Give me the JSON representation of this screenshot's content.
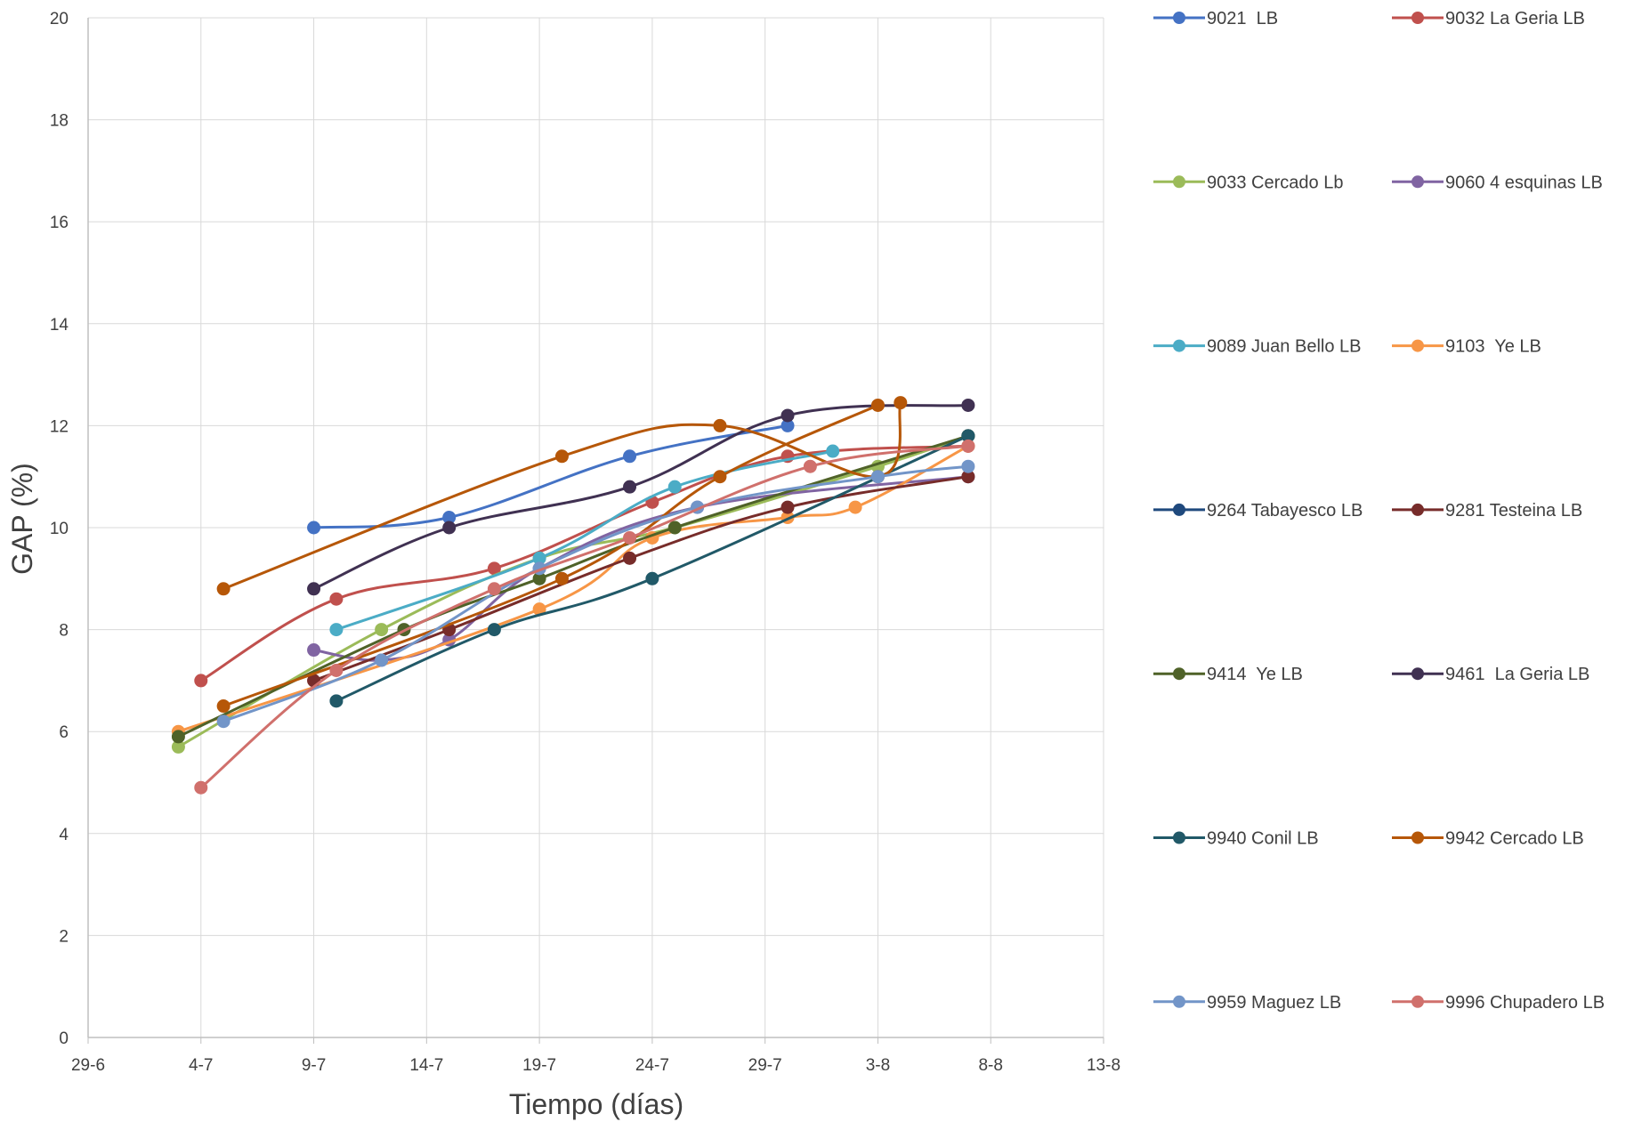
{
  "chart_data": {
    "type": "line",
    "xlabel": "Tiempo (días)",
    "ylabel": "GAP (%)",
    "x_type": "date",
    "x_ticks": [
      "29-6",
      "4-7",
      "9-7",
      "14-7",
      "19-7",
      "24-7",
      "29-7",
      "3-8",
      "8-8",
      "13-8"
    ],
    "x_tick_dates": [
      "2020-06-29",
      "2020-07-04",
      "2020-07-09",
      "2020-07-14",
      "2020-07-19",
      "2020-07-24",
      "2020-07-29",
      "2020-08-03",
      "2020-08-08",
      "2020-08-13"
    ],
    "xlim": [
      "2020-06-29",
      "2020-08-13"
    ],
    "ylim": [
      0,
      20
    ],
    "y_ticks": [
      0,
      2,
      4,
      6,
      8,
      10,
      12,
      14,
      16,
      18,
      20
    ],
    "grid": true,
    "legend_position": "right",
    "series": [
      {
        "name": "9021  LB",
        "color": "#4472C4",
        "points": [
          [
            "2020-07-09",
            10.0
          ],
          [
            "2020-07-15",
            10.2
          ],
          [
            "2020-07-23",
            11.4
          ],
          [
            "2020-07-30",
            12.0
          ]
        ]
      },
      {
        "name": "9032 La Geria LB",
        "color": "#C0504D",
        "points": [
          [
            "2020-07-04",
            7.0
          ],
          [
            "2020-07-10",
            8.6
          ],
          [
            "2020-07-17",
            9.2
          ],
          [
            "2020-07-24",
            10.5
          ],
          [
            "2020-07-30",
            11.4
          ],
          [
            "2020-08-07",
            11.6
          ]
        ]
      },
      {
        "name": "9033 Cercado Lb",
        "color": "#9BBB59",
        "points": [
          [
            "2020-07-03",
            5.7
          ],
          [
            "2020-07-12",
            8.0
          ],
          [
            "2020-07-19",
            9.4
          ],
          [
            "2020-07-25",
            10.0
          ],
          [
            "2020-08-03",
            11.2
          ],
          [
            "2020-08-07",
            11.8
          ]
        ]
      },
      {
        "name": "9060 4 esquinas LB",
        "color": "#8064A2",
        "points": [
          [
            "2020-07-09",
            7.6
          ],
          [
            "2020-07-12",
            7.4
          ],
          [
            "2020-07-15",
            7.8
          ],
          [
            "2020-07-19",
            9.2
          ],
          [
            "2020-07-26",
            10.4
          ],
          [
            "2020-08-07",
            11.0
          ]
        ]
      },
      {
        "name": "9089 Juan Bello LB",
        "color": "#4BACC6",
        "points": [
          [
            "2020-07-10",
            8.0
          ],
          [
            "2020-07-19",
            9.4
          ],
          [
            "2020-07-25",
            10.8
          ],
          [
            "2020-08-01",
            11.5
          ]
        ]
      },
      {
        "name": "9103  Ye LB",
        "color": "#F79646",
        "points": [
          [
            "2020-07-03",
            6.0
          ],
          [
            "2020-07-19",
            8.4
          ],
          [
            "2020-07-24",
            9.8
          ],
          [
            "2020-07-30",
            10.2
          ],
          [
            "2020-08-02",
            10.4
          ],
          [
            "2020-08-07",
            11.6
          ]
        ]
      },
      {
        "name": "9264 Tabayesco LB",
        "color": "#1F497D",
        "points": [
          [
            "2020-08-07",
            11.8
          ]
        ]
      },
      {
        "name": "9281 Testeina LB",
        "color": "#772C2A",
        "points": [
          [
            "2020-07-09",
            7.0
          ],
          [
            "2020-07-15",
            8.0
          ],
          [
            "2020-07-23",
            9.4
          ],
          [
            "2020-07-30",
            10.4
          ],
          [
            "2020-08-07",
            11.0
          ]
        ]
      },
      {
        "name": "9414  Ye LB",
        "color": "#4F6228",
        "points": [
          [
            "2020-07-03",
            5.9
          ],
          [
            "2020-07-13",
            8.0
          ],
          [
            "2020-07-19",
            9.0
          ],
          [
            "2020-07-25",
            10.0
          ],
          [
            "2020-08-07",
            11.8
          ]
        ]
      },
      {
        "name": "9461  La Geria LB",
        "color": "#403152",
        "points": [
          [
            "2020-07-09",
            8.8
          ],
          [
            "2020-07-15",
            10.0
          ],
          [
            "2020-07-23",
            10.8
          ],
          [
            "2020-07-30",
            12.2
          ],
          [
            "2020-08-07",
            12.4
          ]
        ]
      },
      {
        "name": "9940 Conil LB",
        "color": "#215968",
        "points": [
          [
            "2020-07-10",
            6.6
          ],
          [
            "2020-07-17",
            8.0
          ],
          [
            "2020-07-24",
            9.0
          ],
          [
            "2020-08-07",
            11.8
          ]
        ]
      },
      {
        "name": "9942 Cercado LB",
        "color": "#B65708",
        "points": [
          [
            "2020-07-05",
            8.8
          ],
          [
            "2020-07-20",
            11.4
          ],
          [
            "2020-07-27",
            12.0
          ],
          [
            "2020-08-03",
            11.0
          ],
          [
            "2020-08-04",
            12.45
          ]
        ],
        "points2": [
          [
            "2020-07-05",
            6.5
          ],
          [
            "2020-07-20",
            9.0
          ],
          [
            "2020-07-27",
            11.0
          ],
          [
            "2020-08-03",
            12.4
          ]
        ]
      },
      {
        "name": "9959 Maguez LB",
        "color": "#7295C8",
        "points": [
          [
            "2020-07-05",
            6.2
          ],
          [
            "2020-07-12",
            7.4
          ],
          [
            "2020-07-19",
            9.2
          ],
          [
            "2020-07-26",
            10.4
          ],
          [
            "2020-08-03",
            11.0
          ],
          [
            "2020-08-07",
            11.2
          ]
        ]
      },
      {
        "name": "9996 Chupadero LB",
        "color": "#D0706C",
        "points": [
          [
            "2020-07-04",
            4.9
          ],
          [
            "2020-07-10",
            7.2
          ],
          [
            "2020-07-17",
            8.8
          ],
          [
            "2020-07-23",
            9.8
          ],
          [
            "2020-07-31",
            11.2
          ],
          [
            "2020-08-07",
            11.6
          ]
        ]
      }
    ]
  }
}
